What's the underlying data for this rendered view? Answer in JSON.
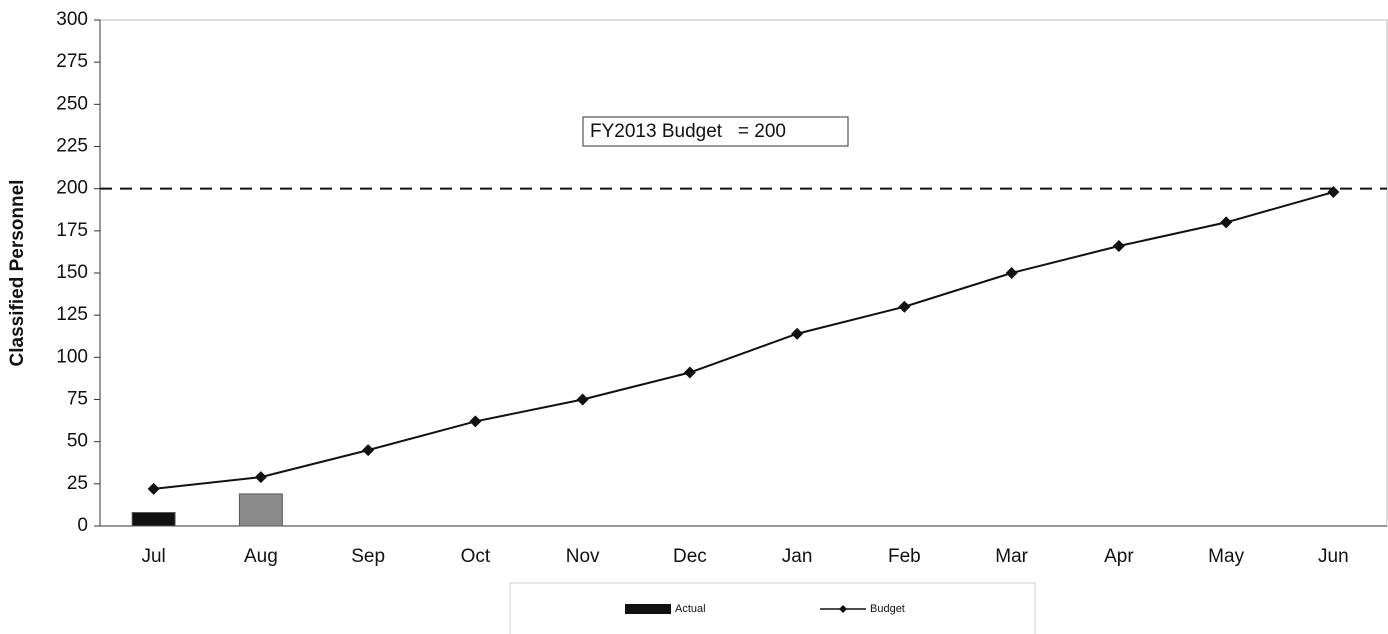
{
  "chart_data": {
    "type": "bar",
    "y_label": "Classified Personnel",
    "categories": [
      "Jul",
      "Aug",
      "Sep",
      "Oct",
      "Nov",
      "Dec",
      "Jan",
      "Feb",
      "Mar",
      "Apr",
      "May",
      "Jun"
    ],
    "series": [
      {
        "name": "Actual",
        "type": "bar",
        "color": "#111111",
        "colors": [
          "#111111",
          "#8a8a8a",
          null,
          null,
          null,
          null,
          null,
          null,
          null,
          null,
          null,
          null
        ],
        "values": [
          8,
          19,
          null,
          null,
          null,
          null,
          null,
          null,
          null,
          null,
          null,
          null
        ]
      },
      {
        "name": "Budget",
        "type": "line",
        "color": "#111111",
        "values": [
          22,
          29,
          45,
          62,
          75,
          91,
          114,
          130,
          150,
          166,
          180,
          198
        ]
      }
    ],
    "reference_line": {
      "value": 200,
      "label": "FY2013 Budget   = 200"
    },
    "ylim": [
      0,
      300
    ],
    "yticks": [
      0,
      25,
      50,
      75,
      100,
      125,
      150,
      175,
      200,
      225,
      250,
      275,
      300
    ],
    "legend": "bottom"
  }
}
